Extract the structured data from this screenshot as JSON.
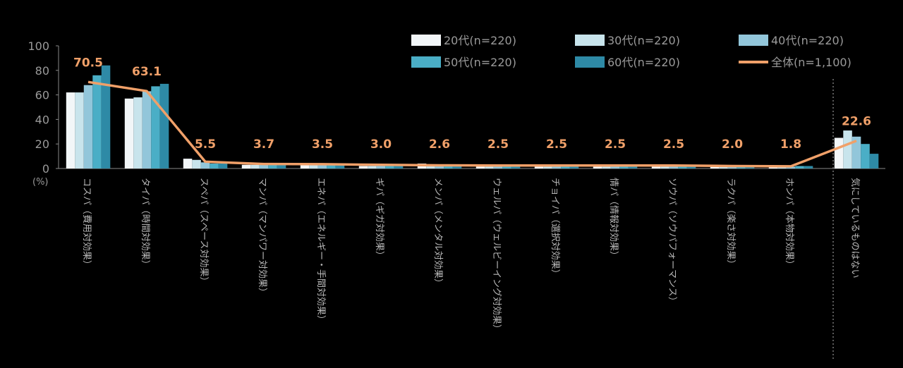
{
  "chart_data": {
    "type": "bar",
    "yunit": "(%)",
    "ylim": [
      0,
      100
    ],
    "yticks": [
      "0",
      "20",
      "40",
      "60",
      "80",
      "100"
    ],
    "categories": [
      "コスパ（費用対効果）",
      "タイパ（時間対効果）",
      "スペパ（スペース対効果）",
      "マンパ（マンパワー対効果）",
      "エネパ（エネルギー・手間対効果）",
      "ギパ（ギガ対効果）",
      "メンパ（メンタル対効果）",
      "ウェルパ（ウェルビーイング対効果）",
      "チョイパ（選択対効果）",
      "情パ（情報対効果）",
      "ソウパ（ソウパフォーマンス）",
      "ラクパ（楽さ対効果）",
      "ホンパ（本物対効果）",
      "気にしているものはない"
    ],
    "series": [
      {
        "name": "20代(n=220)",
        "color": "#f2f6f8",
        "values": [
          62,
          57,
          8,
          3,
          3,
          2,
          4,
          2,
          2,
          2,
          2,
          1.5,
          1,
          25
        ]
      },
      {
        "name": "30代(n=220)",
        "color": "#c8e4ec",
        "values": [
          62,
          58,
          7,
          3,
          3,
          2,
          3,
          2,
          2,
          2,
          2,
          1.8,
          1,
          31
        ]
      },
      {
        "name": "40代(n=220)",
        "color": "#92c6da",
        "values": [
          68,
          63,
          5,
          3,
          3,
          3,
          2,
          2,
          2,
          2,
          2,
          2,
          1.5,
          26
        ]
      },
      {
        "name": "50代(n=220)",
        "color": "#4aaec6",
        "values": [
          76,
          67,
          4,
          4,
          4,
          3,
          2,
          2,
          2,
          2,
          2,
          2,
          2,
          20
        ]
      },
      {
        "name": "60代(n=220)",
        "color": "#2e8aa6",
        "values": [
          84,
          69,
          4,
          3,
          3,
          3,
          2,
          2,
          2,
          2,
          2,
          2,
          2,
          12
        ]
      }
    ],
    "line": {
      "name": "全体(n=1,100)",
      "color": "#f0a069",
      "values": [
        70.5,
        63.1,
        5.5,
        3.7,
        3.5,
        3.0,
        2.6,
        2.5,
        2.5,
        2.5,
        2.5,
        2.0,
        1.8,
        22.6
      ]
    },
    "data_labels": [
      "70.5",
      "63.1",
      "5.5",
      "3.7",
      "3.5",
      "3.0",
      "2.6",
      "2.5",
      "2.5",
      "2.5",
      "2.5",
      "2.0",
      "1.8",
      "22.6"
    ],
    "legend_position": "top-right",
    "grid": false
  }
}
